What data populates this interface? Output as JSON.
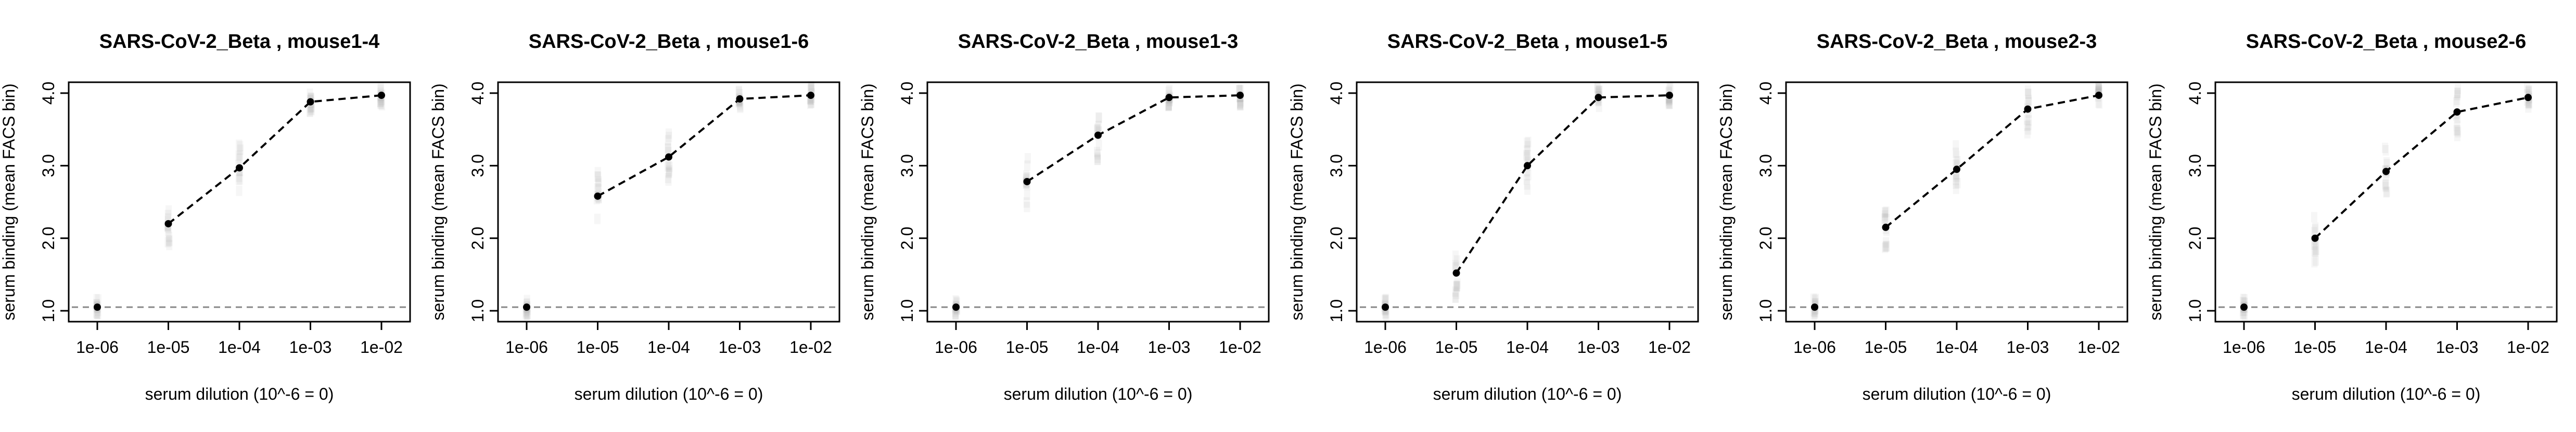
{
  "chart_data": [
    {
      "type": "line",
      "title": "SARS-CoV-2_Beta , mouse1-4",
      "xlabel": "serum dilution (10^-6 = 0)",
      "ylabel": "serum binding (mean FACS bin)",
      "x": [
        0,
        1e-05,
        0.0001,
        0.001,
        0.01
      ],
      "xticklabels": [
        "1e-06",
        "1e-05",
        "1e-04",
        "1e-03",
        "1e-02"
      ],
      "y": [
        1.05,
        2.2,
        2.97,
        3.88,
        3.97
      ],
      "yticks": [
        1.0,
        2.0,
        3.0,
        4.0
      ],
      "yticklabels": [
        "1.0",
        "2.0",
        "3.0",
        "4.0"
      ],
      "ylim": [
        0.85,
        4.15
      ],
      "baseline": 1.05,
      "x_scale": "log",
      "grid": false,
      "line_style": "dashed",
      "colors": {
        "line": "#000000",
        "point": "#000000",
        "baseline": "#888888",
        "distribution": "#9a9a9a"
      }
    },
    {
      "type": "line",
      "title": "SARS-CoV-2_Beta , mouse1-6",
      "xlabel": "serum dilution (10^-6 = 0)",
      "ylabel": "serum binding (mean FACS bin)",
      "x": [
        0,
        1e-05,
        0.0001,
        0.001,
        0.01
      ],
      "xticklabels": [
        "1e-06",
        "1e-05",
        "1e-04",
        "1e-03",
        "1e-02"
      ],
      "y": [
        1.05,
        2.58,
        3.12,
        3.92,
        3.97
      ],
      "yticks": [
        1.0,
        2.0,
        3.0,
        4.0
      ],
      "yticklabels": [
        "1.0",
        "2.0",
        "3.0",
        "4.0"
      ],
      "ylim": [
        0.85,
        4.15
      ],
      "baseline": 1.05,
      "x_scale": "log",
      "grid": false,
      "line_style": "dashed",
      "colors": {
        "line": "#000000",
        "point": "#000000",
        "baseline": "#888888",
        "distribution": "#9a9a9a"
      }
    },
    {
      "type": "line",
      "title": "SARS-CoV-2_Beta , mouse1-3",
      "xlabel": "serum dilution (10^-6 = 0)",
      "ylabel": "serum binding (mean FACS bin)",
      "x": [
        0,
        1e-05,
        0.0001,
        0.001,
        0.01
      ],
      "xticklabels": [
        "1e-06",
        "1e-05",
        "1e-04",
        "1e-03",
        "1e-02"
      ],
      "y": [
        1.05,
        2.78,
        3.42,
        3.94,
        3.97
      ],
      "yticks": [
        1.0,
        2.0,
        3.0,
        4.0
      ],
      "yticklabels": [
        "1.0",
        "2.0",
        "3.0",
        "4.0"
      ],
      "ylim": [
        0.85,
        4.15
      ],
      "baseline": 1.05,
      "x_scale": "log",
      "grid": false,
      "line_style": "dashed",
      "colors": {
        "line": "#000000",
        "point": "#000000",
        "baseline": "#888888",
        "distribution": "#9a9a9a"
      }
    },
    {
      "type": "line",
      "title": "SARS-CoV-2_Beta , mouse1-5",
      "xlabel": "serum dilution (10^-6 = 0)",
      "ylabel": "serum binding (mean FACS bin)",
      "x": [
        0,
        1e-05,
        0.0001,
        0.001,
        0.01
      ],
      "xticklabels": [
        "1e-06",
        "1e-05",
        "1e-04",
        "1e-03",
        "1e-02"
      ],
      "y": [
        1.05,
        1.52,
        3.0,
        3.94,
        3.97
      ],
      "yticks": [
        1.0,
        2.0,
        3.0,
        4.0
      ],
      "yticklabels": [
        "1.0",
        "2.0",
        "3.0",
        "4.0"
      ],
      "ylim": [
        0.85,
        4.15
      ],
      "baseline": 1.05,
      "x_scale": "log",
      "grid": false,
      "line_style": "dashed",
      "colors": {
        "line": "#000000",
        "point": "#000000",
        "baseline": "#888888",
        "distribution": "#9a9a9a"
      }
    },
    {
      "type": "line",
      "title": "SARS-CoV-2_Beta , mouse2-3",
      "xlabel": "serum dilution (10^-6 = 0)",
      "ylabel": "serum binding (mean FACS bin)",
      "x": [
        0,
        1e-05,
        0.0001,
        0.001,
        0.01
      ],
      "xticklabels": [
        "1e-06",
        "1e-05",
        "1e-04",
        "1e-03",
        "1e-02"
      ],
      "y": [
        1.05,
        2.15,
        2.95,
        3.78,
        3.97
      ],
      "yticks": [
        1.0,
        2.0,
        3.0,
        4.0
      ],
      "yticklabels": [
        "1.0",
        "2.0",
        "3.0",
        "4.0"
      ],
      "ylim": [
        0.85,
        4.15
      ],
      "baseline": 1.05,
      "x_scale": "log",
      "grid": false,
      "line_style": "dashed",
      "colors": {
        "line": "#000000",
        "point": "#000000",
        "baseline": "#888888",
        "distribution": "#9a9a9a"
      }
    },
    {
      "type": "line",
      "title": "SARS-CoV-2_Beta , mouse2-6",
      "xlabel": "serum dilution (10^-6 = 0)",
      "ylabel": "serum binding (mean FACS bin)",
      "x": [
        0,
        1e-05,
        0.0001,
        0.001,
        0.01
      ],
      "xticklabels": [
        "1e-06",
        "1e-05",
        "1e-04",
        "1e-03",
        "1e-02"
      ],
      "y": [
        1.05,
        2.0,
        2.92,
        3.74,
        3.94
      ],
      "yticks": [
        1.0,
        2.0,
        3.0,
        4.0
      ],
      "yticklabels": [
        "1.0",
        "2.0",
        "3.0",
        "4.0"
      ],
      "ylim": [
        0.85,
        4.15
      ],
      "baseline": 1.05,
      "x_scale": "log",
      "grid": false,
      "line_style": "dashed",
      "colors": {
        "line": "#000000",
        "point": "#000000",
        "baseline": "#888888",
        "distribution": "#9a9a9a"
      }
    }
  ]
}
